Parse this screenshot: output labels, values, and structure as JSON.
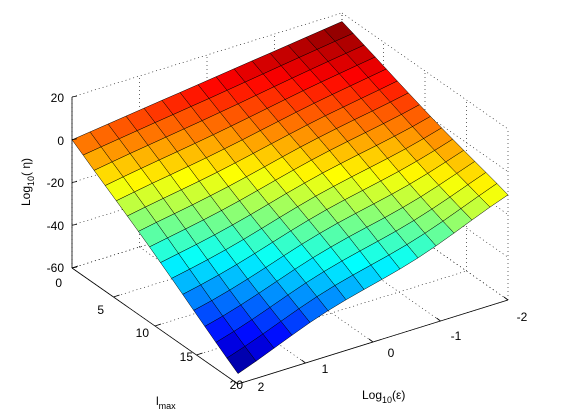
{
  "chart_data": {
    "type": "surface3d",
    "title": "",
    "xlabel": "Log10(ε)",
    "xlabel_main": "Log",
    "xlabel_sub": "10",
    "xlabel_tail": "(ε)",
    "ylabel": "lmax",
    "ylabel_main": "l",
    "ylabel_sub": "max",
    "zlabel": "Log10( η)",
    "zlabel_main": "Log",
    "zlabel_sub": "10",
    "zlabel_tail": "( η)",
    "xlim": [
      -2,
      2
    ],
    "ylim": [
      0,
      20
    ],
    "zlim": [
      -60,
      20
    ],
    "x_ticks": [
      "2",
      "1",
      "0",
      "-1",
      "-2"
    ],
    "y_ticks": [
      "0",
      "5",
      "10",
      "15",
      "20"
    ],
    "z_ticks": [
      "20",
      "0",
      "-20",
      "-40",
      "-60"
    ],
    "x_tick_values": [
      2,
      1,
      0,
      -1,
      -2
    ],
    "y_tick_values": [
      0,
      5,
      10,
      15,
      20
    ],
    "z_tick_values": [
      20,
      0,
      -20,
      -40,
      -60
    ],
    "grid": true,
    "colormap": "jet",
    "corner_values": {
      "eps_-2_lmax_0": 16,
      "eps_2_lmax_0": 0,
      "eps_-2_lmax_20": -12,
      "eps_2_lmax_20": -54
    },
    "grid_size": [
      15,
      15
    ]
  }
}
